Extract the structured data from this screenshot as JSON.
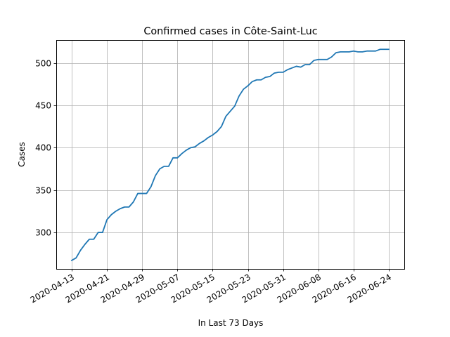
{
  "chart_data": {
    "type": "line",
    "title": "Confirmed cases in Côte-Saint-Luc",
    "xlabel": "In Last 73 Days",
    "ylabel": "Cases",
    "x_start": "2020-04-13",
    "x_end": "2020-06-24",
    "ylim": [
      257,
      527
    ],
    "grid": true,
    "line_color": "#1f77b4",
    "x_ticks": [
      "2020-04-13",
      "2020-04-21",
      "2020-04-29",
      "2020-05-07",
      "2020-05-15",
      "2020-05-23",
      "2020-05-31",
      "2020-06-08",
      "2020-06-16",
      "2020-06-24"
    ],
    "y_ticks": [
      300,
      350,
      400,
      450,
      500
    ],
    "series": [
      {
        "x": [
          "2020-04-13",
          "2020-04-14",
          "2020-04-15",
          "2020-04-16",
          "2020-04-17",
          "2020-04-18",
          "2020-04-19",
          "2020-04-20",
          "2020-04-21",
          "2020-04-22",
          "2020-04-23",
          "2020-04-24",
          "2020-04-25",
          "2020-04-26",
          "2020-04-27",
          "2020-04-28",
          "2020-04-29",
          "2020-04-30",
          "2020-05-01",
          "2020-05-02",
          "2020-05-03",
          "2020-05-04",
          "2020-05-05",
          "2020-05-06",
          "2020-05-07",
          "2020-05-08",
          "2020-05-09",
          "2020-05-10",
          "2020-05-11",
          "2020-05-12",
          "2020-05-13",
          "2020-05-14",
          "2020-05-15",
          "2020-05-16",
          "2020-05-17",
          "2020-05-18",
          "2020-05-19",
          "2020-05-20",
          "2020-05-21",
          "2020-05-22",
          "2020-05-23",
          "2020-05-24",
          "2020-05-25",
          "2020-05-26",
          "2020-05-27",
          "2020-05-28",
          "2020-05-29",
          "2020-05-30",
          "2020-05-31",
          "2020-06-01",
          "2020-06-02",
          "2020-06-03",
          "2020-06-04",
          "2020-06-05",
          "2020-06-06",
          "2020-06-07",
          "2020-06-08",
          "2020-06-09",
          "2020-06-10",
          "2020-06-11",
          "2020-06-12",
          "2020-06-13",
          "2020-06-14",
          "2020-06-15",
          "2020-06-16",
          "2020-06-17",
          "2020-06-18",
          "2020-06-19",
          "2020-06-20",
          "2020-06-21",
          "2020-06-22",
          "2020-06-23",
          "2020-06-24"
        ],
        "values": [
          267,
          270,
          279,
          286,
          292,
          292,
          300,
          300,
          315,
          321,
          325,
          328,
          330,
          330,
          336,
          346,
          346,
          346,
          354,
          367,
          375,
          378,
          378,
          388,
          388,
          393,
          397,
          400,
          401,
          405,
          408,
          412,
          415,
          419,
          425,
          437,
          443,
          449,
          461,
          469,
          473,
          478,
          480,
          480,
          483,
          484,
          488,
          489,
          489,
          492,
          494,
          496,
          495,
          498,
          498,
          503,
          504,
          504,
          504,
          507,
          512,
          513,
          513,
          513,
          514,
          513,
          513,
          514,
          514,
          514,
          516,
          516,
          516
        ]
      }
    ]
  }
}
